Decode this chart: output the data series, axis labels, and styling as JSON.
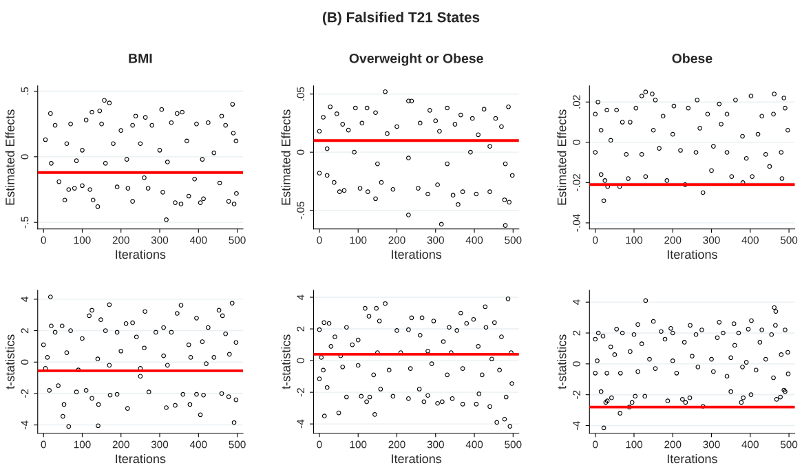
{
  "chart_data": [
    {
      "type": "scatter",
      "annotations": [
        "(B) Falsified T21 States"
      ],
      "title": "BMI",
      "xlabel": "Iterations",
      "ylabel": "Estimated Effects",
      "color": "#000000",
      "marker": "circle",
      "grid": "y",
      "xlim": [
        -15,
        515
      ],
      "ylim": [
        -0.55,
        0.54
      ],
      "xticks": [
        0,
        100,
        200,
        300,
        400,
        500
      ],
      "yticks": [
        {
          "value": -0.5,
          "label": "-.5"
        },
        0,
        {
          "value": 0.5,
          "label": ".5"
        }
      ],
      "ref_lines": [
        {
          "axis": "y",
          "value": -0.12,
          "color": "#ff0000"
        }
      ],
      "x": [
        18,
        157,
        170,
        305,
        358,
        488,
        145,
        125,
        238,
        263,
        345,
        460,
        5,
        30,
        70,
        110,
        150,
        200,
        230,
        280,
        330,
        395,
        425,
        470,
        490,
        497,
        60,
        100,
        180,
        250,
        300,
        370,
        440,
        20,
        85,
        160,
        215,
        320,
        410,
        40,
        55,
        65,
        80,
        120,
        140,
        128,
        190,
        218,
        230,
        270,
        308,
        317,
        340,
        355,
        375,
        405,
        413,
        455,
        478,
        492,
        498,
        390,
        260,
        100
      ],
      "values": [
        0.33,
        0.43,
        0.41,
        0.36,
        0.34,
        0.4,
        0.35,
        0.34,
        0.31,
        0.3,
        0.33,
        0.31,
        0.13,
        0.24,
        0.25,
        0.28,
        0.25,
        0.2,
        0.24,
        0.24,
        0.26,
        0.25,
        0.26,
        0.24,
        0.18,
        0.12,
        0.1,
        0.05,
        0.1,
        0.1,
        0.05,
        0.12,
        0.03,
        -0.05,
        -0.03,
        -0.05,
        -0.02,
        -0.04,
        -0.02,
        -0.19,
        -0.33,
        -0.25,
        -0.24,
        -0.25,
        -0.38,
        -0.33,
        -0.23,
        -0.24,
        -0.34,
        -0.24,
        -0.27,
        -0.48,
        -0.35,
        -0.36,
        -0.3,
        -0.35,
        -0.32,
        -0.2,
        -0.34,
        -0.36,
        -0.28,
        -0.17,
        -0.16,
        -0.22
      ]
    },
    {
      "type": "scatter",
      "title": "Overweight or Obese",
      "xlabel": "Iterations",
      "ylabel": "Estimated Effects",
      "color": "#000000",
      "marker": "circle",
      "grid": "y",
      "xlim": [
        -15,
        515
      ],
      "ylim": [
        -0.066,
        0.057
      ],
      "xticks": [
        0,
        100,
        200,
        300,
        400,
        500
      ],
      "yticks": [
        {
          "value": -0.05,
          "label": "-.05"
        },
        0,
        {
          "value": 0.05,
          "label": ".05"
        }
      ],
      "ref_lines": [
        {
          "axis": "y",
          "value": 0.01,
          "color": "#ff0000"
        }
      ],
      "x": [
        170,
        230,
        238,
        28,
        93,
        123,
        330,
        425,
        488,
        45,
        145,
        285,
        365,
        395,
        455,
        10,
        60,
        110,
        200,
        260,
        300,
        350,
        410,
        470,
        0,
        75,
        175,
        310,
        440,
        20,
        90,
        150,
        230,
        330,
        390,
        480,
        0,
        38,
        52,
        64,
        105,
        125,
        145,
        160,
        190,
        230,
        255,
        280,
        305,
        315,
        345,
        358,
        370,
        405,
        440,
        478,
        480,
        490,
        498,
        20
      ],
      "values": [
        0.052,
        0.044,
        0.044,
        0.039,
        0.038,
        0.038,
        0.038,
        0.037,
        0.039,
        0.033,
        0.034,
        0.036,
        0.032,
        0.029,
        0.029,
        0.03,
        0.024,
        0.025,
        0.022,
        0.025,
        0.027,
        0.024,
        0.015,
        0.022,
        0.018,
        0.019,
        0.016,
        0.018,
        0.005,
        0.003,
        0.0,
        -0.01,
        -0.005,
        -0.01,
        0.0,
        -0.01,
        -0.018,
        -0.026,
        -0.034,
        -0.033,
        -0.031,
        -0.034,
        -0.04,
        -0.026,
        -0.032,
        -0.054,
        -0.031,
        -0.036,
        -0.028,
        -0.062,
        -0.037,
        -0.045,
        -0.034,
        -0.036,
        -0.034,
        -0.041,
        -0.063,
        -0.043,
        -0.02,
        -0.02
      ]
    },
    {
      "type": "scatter",
      "title": "Obese",
      "xlabel": "Iterations",
      "ylabel": "Estimated Effects",
      "color": "#000000",
      "marker": "circle",
      "grid": "y",
      "xlim": [
        -15,
        515
      ],
      "ylim": [
        -0.043,
        0.028
      ],
      "xticks": [
        0,
        100,
        200,
        300,
        400,
        500
      ],
      "yticks": [
        {
          "value": -0.04,
          "label": "-.04"
        },
        {
          "value": -0.02,
          "label": "-.02"
        },
        0,
        {
          "value": 0.02,
          "label": ".02"
        }
      ],
      "ref_lines": [
        {
          "axis": "y",
          "value": -0.021,
          "color": "#ff0000"
        }
      ],
      "x": [
        7,
        120,
        130,
        147,
        155,
        263,
        362,
        402,
        462,
        487,
        203,
        320,
        490,
        0,
        30,
        55,
        105,
        175,
        240,
        290,
        340,
        430,
        460,
        15,
        70,
        90,
        150,
        200,
        270,
        325,
        380,
        420,
        497,
        0,
        40,
        80,
        120,
        165,
        220,
        260,
        305,
        340,
        390,
        440,
        480,
        15,
        22,
        32,
        63,
        85,
        185,
        232,
        278,
        352,
        381,
        405,
        482,
        25,
        130,
        300,
        450
      ],
      "values": [
        0.02,
        0.023,
        0.025,
        0.024,
        0.021,
        0.021,
        0.021,
        0.023,
        0.024,
        0.022,
        0.018,
        0.019,
        0.017,
        0.014,
        0.016,
        0.016,
        0.017,
        0.013,
        0.017,
        0.014,
        0.014,
        0.013,
        0.014,
        0.006,
        0.01,
        0.01,
        0.006,
        0.004,
        0.007,
        0.009,
        0.003,
        0.004,
        0.006,
        -0.005,
        0.001,
        -0.006,
        -0.006,
        -0.003,
        -0.004,
        -0.005,
        -0.002,
        -0.005,
        -0.008,
        -0.006,
        -0.005,
        -0.016,
        -0.029,
        -0.022,
        -0.022,
        -0.018,
        -0.019,
        -0.021,
        -0.025,
        -0.017,
        -0.02,
        -0.017,
        -0.018,
        -0.019,
        -0.017,
        -0.014,
        -0.012
      ]
    },
    {
      "type": "scatter",
      "xlabel": "Iterations",
      "ylabel": "t-statistics",
      "color": "#000000",
      "marker": "circle",
      "grid": "y",
      "xlim": [
        -15,
        515
      ],
      "ylim": [
        -4.53,
        4.57
      ],
      "xticks": [
        0,
        100,
        200,
        300,
        400,
        500
      ],
      "yticks": [
        -4,
        -2,
        0,
        2,
        4
      ],
      "ref_lines": [
        {
          "axis": "y",
          "value": -0.55,
          "color": "#ff0000"
        }
      ],
      "x": [
        18,
        170,
        355,
        487,
        262,
        125,
        345,
        453,
        118,
        395,
        462,
        148,
        20,
        48,
        213,
        230,
        310,
        425,
        0,
        30,
        70,
        100,
        160,
        190,
        240,
        290,
        330,
        375,
        410,
        470,
        497,
        10,
        60,
        140,
        200,
        260,
        310,
        380,
        440,
        480,
        5,
        90,
        170,
        250,
        320,
        420,
        15,
        38,
        53,
        50,
        65,
        85,
        110,
        125,
        142,
        141,
        172,
        190,
        217,
        250,
        272,
        317,
        340,
        360,
        378,
        395,
        405,
        413,
        460,
        478,
        492,
        497
      ],
      "values": [
        4.15,
        3.65,
        3.62,
        3.75,
        3.22,
        3.3,
        3.1,
        3.3,
        2.95,
        2.8,
        2.95,
        2.7,
        2.3,
        2.3,
        2.45,
        2.5,
        2.2,
        2.2,
        1.1,
        1.9,
        2.0,
        1.5,
        2.0,
        1.9,
        1.6,
        1.9,
        1.9,
        1.1,
        1.3,
        1.8,
        1.25,
        0.3,
        0.6,
        0.2,
        0.7,
        0.9,
        0.4,
        0.3,
        0.3,
        0.5,
        -0.4,
        -0.5,
        -0.2,
        -0.4,
        -0.2,
        -0.1,
        -1.8,
        -1.5,
        -2.7,
        -3.45,
        -4.1,
        -1.9,
        -1.8,
        -2.3,
        -2.7,
        -4.05,
        -2.1,
        -2.05,
        -2.95,
        -0.9,
        -1.9,
        -2.9,
        -2.75,
        -2.05,
        -2.7,
        -2.05,
        -3.35,
        -2.1,
        -2.0,
        -2.2,
        -3.85,
        -2.4
      ]
    },
    {
      "type": "scatter",
      "xlabel": "Iterations",
      "ylabel": "t-statistics",
      "color": "#000000",
      "marker": "circle",
      "grid": "y",
      "xlim": [
        -15,
        515
      ],
      "ylim": [
        -4.59,
        4.44
      ],
      "xticks": [
        0,
        100,
        200,
        300,
        400,
        500
      ],
      "yticks": [
        -4,
        -2,
        0,
        2,
        4
      ],
      "ref_lines": [
        {
          "axis": "y",
          "value": 0.4,
          "color": "#ff0000"
        }
      ],
      "x": [
        487,
        170,
        147,
        118,
        428,
        365,
        128,
        238,
        265,
        398,
        452,
        155,
        0,
        12,
        25,
        70,
        230,
        295,
        335,
        355,
        380,
        430,
        40,
        100,
        200,
        260,
        320,
        470,
        5,
        30,
        55,
        85,
        150,
        210,
        280,
        340,
        410,
        445,
        495,
        10,
        60,
        100,
        140,
        180,
        235,
        290,
        330,
        370,
        420,
        465,
        0,
        13,
        20,
        50,
        70,
        108,
        122,
        130,
        143,
        158,
        190,
        230,
        258,
        270,
        280,
        305,
        317,
        343,
        370,
        405,
        412,
        440,
        458,
        478,
        482,
        492,
        497
      ],
      "values": [
        3.9,
        3.6,
        3.3,
        3.3,
        3.4,
        3.0,
        2.8,
        2.7,
        2.7,
        2.6,
        2.4,
        2.5,
        1.95,
        2.4,
        2.35,
        2.1,
        1.95,
        2.5,
        2.1,
        1.9,
        2.35,
        2.1,
        1.5,
        1.3,
        1.9,
        1.6,
        1.2,
        1.5,
        0.2,
        0.9,
        0.3,
        1.0,
        0.5,
        0.5,
        0.6,
        0.5,
        0.9,
        0.1,
        0.5,
        -0.6,
        -0.4,
        -0.3,
        -0.9,
        -0.6,
        -0.5,
        -0.2,
        -0.9,
        -0.5,
        -0.9,
        -0.6,
        -1.15,
        -3.5,
        -1.7,
        -3.3,
        -2.3,
        -2.25,
        -2.6,
        -2.3,
        -3.4,
        -1.8,
        -2.25,
        -2.4,
        -1.8,
        -2.6,
        -2.2,
        -2.7,
        -2.6,
        -2.4,
        -2.75,
        -2.75,
        -2.1,
        -2.9,
        -3.9,
        -3.7,
        -2.3,
        -4.15,
        -1.45
      ]
    },
    {
      "type": "scatter",
      "xlabel": "Iterations",
      "ylabel": "t-statistics",
      "color": "#000000",
      "marker": "circle",
      "grid": "y",
      "xlim": [
        -15,
        515
      ],
      "ylim": [
        -4.5,
        4.77
      ],
      "xticks": [
        0,
        100,
        200,
        300,
        400,
        500
      ],
      "yticks": [
        -4,
        -2,
        0,
        2,
        4
      ],
      "ref_lines": [
        {
          "axis": "y",
          "value": -2.8,
          "color": "#ff0000"
        }
      ],
      "x": [
        130,
        462,
        466,
        403,
        320,
        110,
        245,
        358,
        465,
        150,
        55,
        195,
        275,
        395,
        430,
        490,
        8,
        20,
        70,
        100,
        170,
        200,
        260,
        330,
        370,
        455,
        0,
        40,
        120,
        180,
        230,
        315,
        360,
        425,
        480,
        497,
        5,
        50,
        90,
        140,
        200,
        250,
        300,
        350,
        390,
        440,
        0,
        30,
        65,
        110,
        155,
        210,
        265,
        305,
        340,
        380,
        415,
        460,
        498,
        15,
        22,
        27,
        31,
        42,
        64,
        88,
        95,
        103,
        128,
        187,
        225,
        233,
        244,
        278,
        350,
        377,
        382,
        402,
        468,
        478,
        487,
        490
      ],
      "values": [
        4.1,
        3.65,
        3.4,
        2.8,
        2.7,
        2.55,
        2.5,
        2.6,
        2.5,
        2.75,
        2.25,
        2.3,
        2.2,
        2.25,
        2.2,
        2.2,
        2.0,
        1.8,
        2.0,
        1.9,
        2.1,
        2.0,
        1.9,
        2.0,
        2.0,
        1.9,
        1.6,
        1.1,
        1.3,
        1.6,
        1.4,
        1.7,
        1.2,
        1.4,
        0.6,
        0.75,
        0.2,
        0.6,
        0.8,
        0.3,
        0.2,
        0.5,
        0.3,
        0.4,
        0.1,
        0.3,
        -0.6,
        -0.6,
        -0.6,
        -0.5,
        -0.3,
        -0.6,
        -0.2,
        -0.5,
        -0.8,
        -0.2,
        -0.4,
        -0.9,
        -0.65,
        -1.8,
        -4.15,
        -2.5,
        -2.4,
        -2.2,
        -3.2,
        -2.8,
        -2.5,
        -2.1,
        -2.1,
        -2.4,
        -2.3,
        -2.5,
        -2.2,
        -2.75,
        -1.8,
        -2.5,
        -2.2,
        -2.0,
        -2.3,
        -2.15,
        -1.7,
        -1.8
      ]
    }
  ]
}
